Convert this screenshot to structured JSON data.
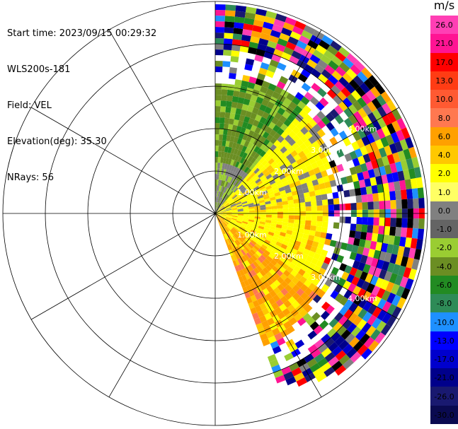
{
  "header": {
    "start_time": "Start time: 2023/09/15 00:29:32",
    "instrument": "WLS200s-181",
    "field": "Field: VEL",
    "elevation": "Elevation(deg): 35.30",
    "nrays": "NRays: 56"
  },
  "colorbar": {
    "unit": "m/s",
    "ticks": [
      "26.0",
      "21.0",
      "17.0",
      "13.0",
      "10.0",
      "8.0",
      "6.0",
      "4.0",
      "2.0",
      "1.0",
      "0.0",
      "-1.0",
      "-2.0",
      "-4.0",
      "-6.0",
      "-8.0",
      "-10.0",
      "-13.0",
      "-17.0",
      "-21.0",
      "-26.0",
      "-30.0"
    ],
    "colors": [
      "#ff3fb4",
      "#ff1493",
      "#ff0000",
      "#ff3c14",
      "#ff5a32",
      "#ff7850",
      "#ffa000",
      "#ffc800",
      "#ffff00",
      "#ffff64",
      "#808080",
      "#646464",
      "#9acd32",
      "#6b8e23",
      "#228b22",
      "#2e8b57",
      "#1e90ff",
      "#0000ff",
      "#0000cd",
      "#00008b",
      "#191970",
      "#0a0a50"
    ]
  },
  "chart_data": {
    "type": "radar-ppi",
    "field": "VEL",
    "unit": "m/s",
    "range_ring_labels": [
      "1.00km",
      "2.00km",
      "3.00km",
      "4.00km"
    ],
    "sector_azimuth_deg": [
      0,
      160
    ],
    "nrays": 56,
    "velocity_zones": [
      {
        "azimuth_deg": [
          0,
          40
        ],
        "range_km": [
          0,
          1.2
        ],
        "dominant_m_s": "-4.0 to -2.0"
      },
      {
        "azimuth_deg": [
          0,
          40
        ],
        "range_km": [
          1.2,
          3.0
        ],
        "dominant_m_s": "-6.0 to -2.0"
      },
      {
        "azimuth_deg": [
          40,
          85
        ],
        "range_km": [
          0,
          3.2
        ],
        "dominant_m_s": "0.0 to 2.0"
      },
      {
        "azimuth_deg": [
          85,
          125
        ],
        "range_km": [
          0,
          3.5
        ],
        "dominant_m_s": "2.0 to 4.0"
      },
      {
        "azimuth_deg": [
          125,
          160
        ],
        "range_km": [
          0,
          4.5
        ],
        "dominant_m_s": "4.0 to 8.0"
      }
    ],
    "noise_onset_range_km": 3.0,
    "grid": true
  }
}
